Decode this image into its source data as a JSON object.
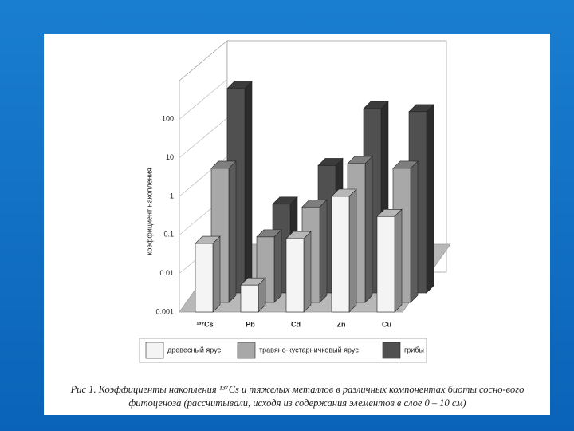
{
  "chart_data": {
    "type": "bar",
    "y_label": "коэффициент накопления",
    "categories": [
      "¹³⁷Cs",
      "Pb",
      "Cd",
      "Zn",
      "Cu"
    ],
    "series": [
      {
        "name": "древесный ярус",
        "color": "#f4f4f4",
        "values": [
          0.06,
          0.005,
          0.08,
          1,
          0.3
        ]
      },
      {
        "name": "травяно-кустарничковый ярус",
        "color": "#a8a8a8",
        "values": [
          3,
          0.05,
          0.3,
          4,
          3
        ]
      },
      {
        "name": "грибы",
        "color": "#505050",
        "values": [
          200,
          0.2,
          2,
          60,
          50
        ]
      }
    ],
    "ylim": [
      0.001,
      1000
    ],
    "yticks": [
      0.001,
      0.01,
      0.1,
      1,
      10,
      100
    ],
    "log_scale": true,
    "grid": true,
    "legend": "bottom",
    "caption": "Рис 1. Коэффициенты накопления ¹³⁷Cs и тяжелых металлов в различных компонентах биоты сосно-вого фитоценоза (рассчитывали, исходя из содержания элементов в слое 0 – 10 см)"
  }
}
